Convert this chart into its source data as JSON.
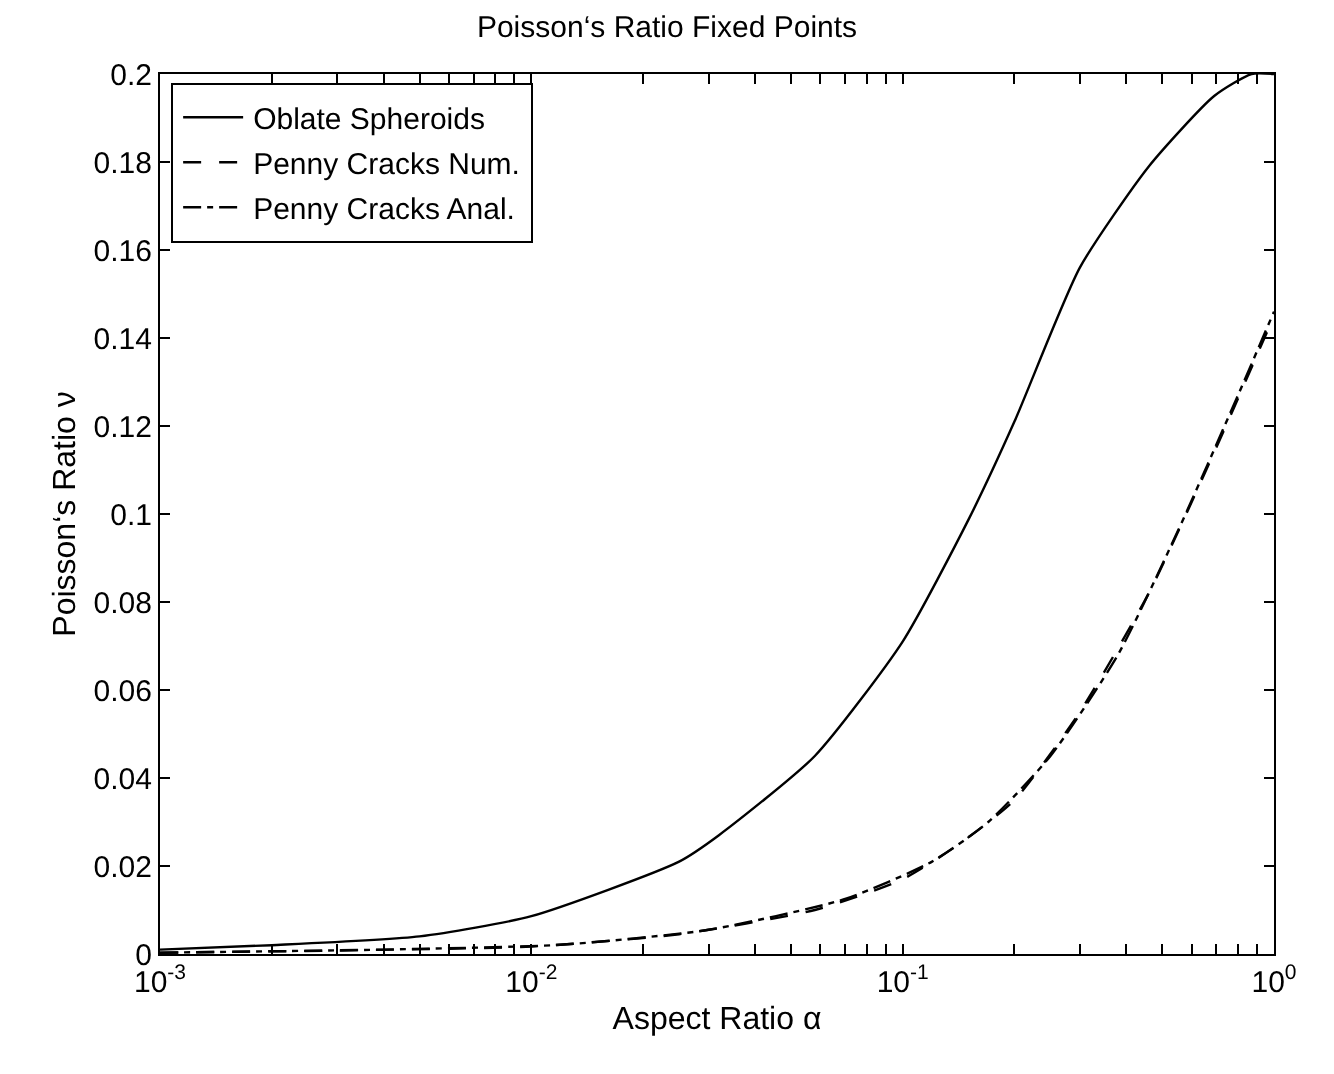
{
  "chart_data": {
    "type": "line",
    "title": "Poisson‘s Ratio Fixed Points",
    "xlabel": "Aspect Ratio α",
    "ylabel": "Poisson‘s Ratio ν",
    "log": "x",
    "grid": false,
    "legend": "top left",
    "marker": "none",
    "xlim": [
      0.001,
      1
    ],
    "ylim": [
      0,
      0.2
    ],
    "xticks": [
      {
        "value": 0.001,
        "label": "10$^{-3}$"
      },
      {
        "value": 0.002,
        "label": null
      },
      {
        "value": 0.003,
        "label": null
      },
      {
        "value": 0.004,
        "label": null
      },
      {
        "value": 0.005,
        "label": null
      },
      {
        "value": 0.006,
        "label": null
      },
      {
        "value": 0.007,
        "label": null
      },
      {
        "value": 0.008,
        "label": null
      },
      {
        "value": 0.009,
        "label": null
      },
      {
        "value": 0.01,
        "label": "10$^{-2}$"
      },
      {
        "value": 0.02,
        "label": null
      },
      {
        "value": 0.03,
        "label": null
      },
      {
        "value": 0.04,
        "label": null
      },
      {
        "value": 0.05,
        "label": null
      },
      {
        "value": 0.06,
        "label": null
      },
      {
        "value": 0.07,
        "label": null
      },
      {
        "value": 0.08,
        "label": null
      },
      {
        "value": 0.09,
        "label": null
      },
      {
        "value": 0.1,
        "label": "10$^{-1}$"
      },
      {
        "value": 0.2,
        "label": null
      },
      {
        "value": 0.3,
        "label": null
      },
      {
        "value": 0.4,
        "label": null
      },
      {
        "value": 0.5,
        "label": null
      },
      {
        "value": 0.6,
        "label": null
      },
      {
        "value": 0.7,
        "label": null
      },
      {
        "value": 0.8,
        "label": null
      },
      {
        "value": 0.9,
        "label": null
      },
      {
        "value": 1,
        "label": "10$^{0}$"
      }
    ],
    "yticks": [
      0,
      0.02,
      0.04,
      0.06,
      0.08,
      0.1,
      0.12,
      0.14,
      0.16,
      0.18,
      0.2
    ],
    "series": [
      {
        "name": "Oblate Spheroids",
        "color": "#000000",
        "line_style": "solid",
        "x": [
          0.001,
          0.002,
          0.005,
          0.01,
          0.025,
          0.032,
          0.058,
          0.1,
          0.151,
          0.2,
          0.3,
          0.46,
          0.69,
          0.87,
          1
        ],
        "values": [
          0.001,
          0.002,
          0.004,
          0.0086,
          0.021,
          0.027,
          0.045,
          0.071,
          0.099,
          0.121,
          0.156,
          0.179,
          0.195,
          0.2,
          0.2
        ]
      },
      {
        "name": "Penny Cracks Num.",
        "color": "#000000",
        "line_style": "dashed",
        "x": [
          0.001,
          0.003,
          0.01,
          0.025,
          0.058,
          0.1,
          0.142,
          0.2,
          0.3,
          0.46,
          0.69,
          1
        ],
        "values": [
          0.0003,
          0.0008,
          0.0017,
          0.0045,
          0.01,
          0.017,
          0.025,
          0.035,
          0.055,
          0.082,
          0.114,
          0.145
        ]
      },
      {
        "name": "Penny Cracks Anal.",
        "color": "#000000",
        "line_style": "dashdot",
        "x": [
          0.001,
          0.004,
          0.012,
          0.03,
          0.07,
          0.12,
          0.17,
          0.25,
          0.38,
          0.55,
          0.8,
          1
        ],
        "values": [
          0.0003,
          0.001,
          0.0021,
          0.0055,
          0.0125,
          0.021,
          0.03,
          0.045,
          0.068,
          0.096,
          0.127,
          0.146
        ]
      }
    ]
  }
}
